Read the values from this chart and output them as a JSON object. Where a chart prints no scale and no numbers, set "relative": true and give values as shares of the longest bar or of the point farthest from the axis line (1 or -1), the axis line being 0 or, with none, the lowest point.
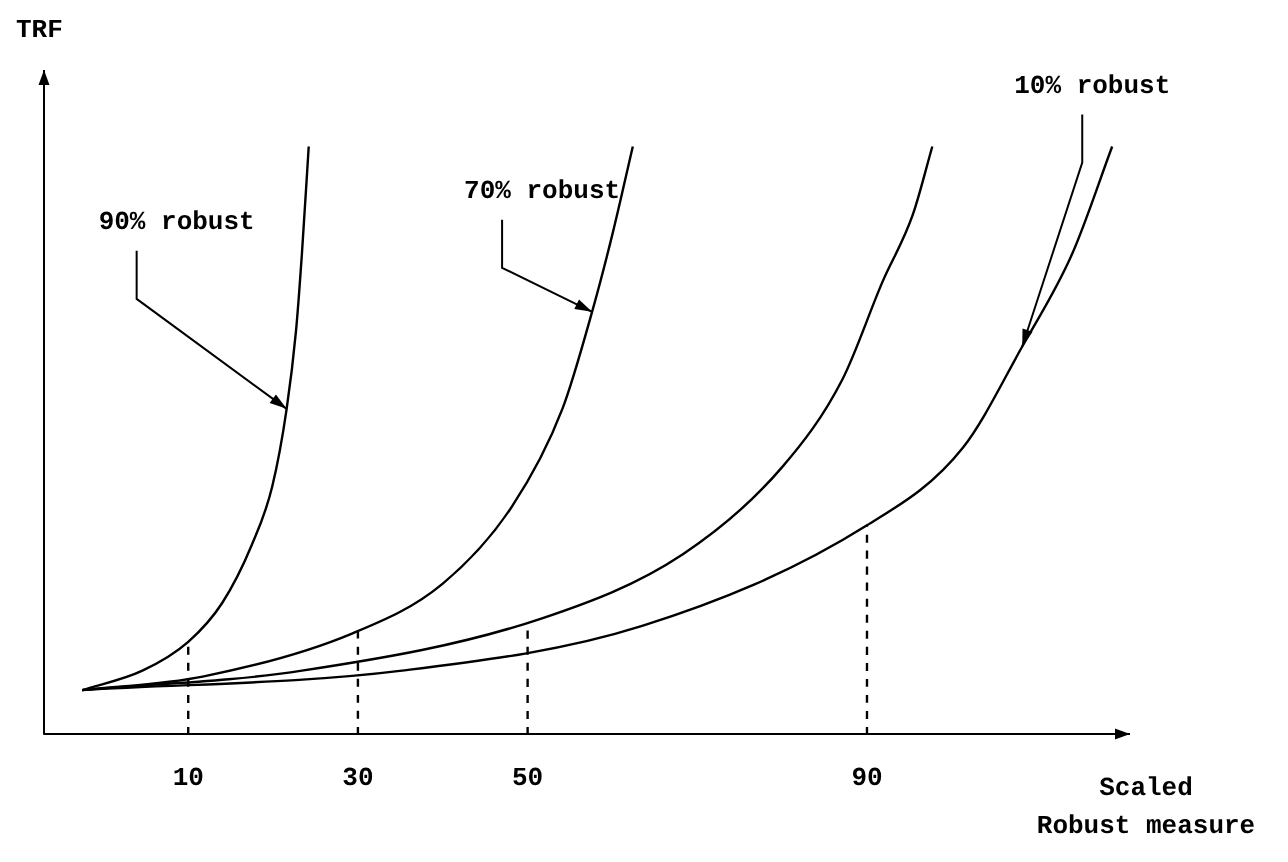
{
  "chart_data": {
    "type": "line",
    "relative": true,
    "ylabel": "TRF",
    "xlabel": "Scaled\nRobust measure",
    "xlim": [
      -7,
      121
    ],
    "xticks": [
      10,
      30,
      50,
      90
    ],
    "grid": false,
    "legend": false,
    "marker": "none",
    "series": [
      {
        "name": "90% robust",
        "color": "#000000",
        "x": [
          -2.5,
          4.6,
          10,
          14,
          17.5,
          19.9,
          21.6,
          22.7,
          23.4,
          24.2
        ],
        "values": [
          0.076,
          0.109,
          0.158,
          0.224,
          0.323,
          0.422,
          0.554,
          0.686,
          0.818,
          1.0
        ]
      },
      {
        "name": "70% robust",
        "color": "#000000",
        "x": [
          -2.5,
          11.7,
          29.3,
          40,
          48.2,
          54.1,
          57.6,
          60,
          62.4
        ],
        "values": [
          0.076,
          0.099,
          0.172,
          0.257,
          0.389,
          0.554,
          0.719,
          0.851,
          1.0
        ]
      },
      {
        "color": "#000000",
        "x": [
          -2.5,
          23.4,
          51.7,
          68.3,
          80,
          87.1,
          91.8,
          95.4,
          97.7
        ],
        "values": [
          0.076,
          0.109,
          0.198,
          0.307,
          0.455,
          0.604,
          0.769,
          0.884,
          1.0
        ]
      },
      {
        "name": "10% robust",
        "color": "#000000",
        "x": [
          -2.5,
          35.2,
          63.5,
          90,
          101.3,
          108.3,
          114.2,
          118.9
        ],
        "values": [
          0.076,
          0.109,
          0.185,
          0.356,
          0.488,
          0.66,
          0.818,
          1.0
        ]
      },
      {
        "color": "#000000",
        "line_style": "dashed",
        "x": [
          10,
          10
        ],
        "values": [
          0,
          0.158
        ]
      },
      {
        "color": "#000000",
        "line_style": "dashed",
        "x": [
          30,
          30
        ],
        "values": [
          0,
          0.175
        ]
      },
      {
        "color": "#000000",
        "line_style": "dashed",
        "x": [
          50,
          50
        ],
        "values": [
          0,
          0.19
        ]
      },
      {
        "color": "#000000",
        "line_style": "dashed",
        "x": [
          90,
          90
        ],
        "values": [
          0,
          0.356
        ]
      }
    ]
  }
}
